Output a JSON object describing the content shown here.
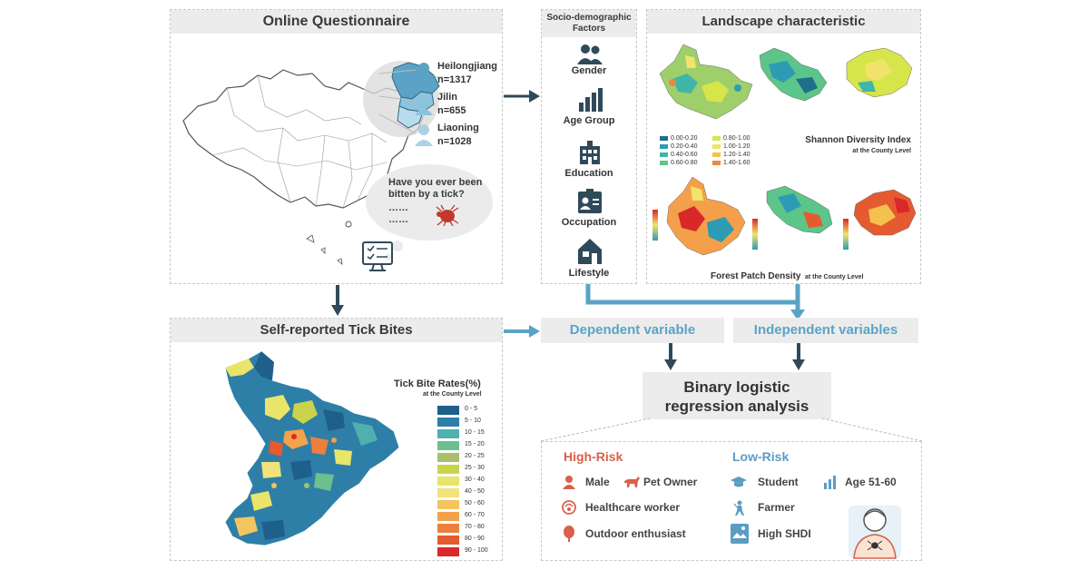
{
  "questionnaire": {
    "title": "Online Questionnaire",
    "provinces": [
      {
        "name": "Heilongjiang",
        "n": "n=1317"
      },
      {
        "name": "Jilin",
        "n": "n=655"
      },
      {
        "name": "Liaoning",
        "n": "n=1028"
      }
    ],
    "question_line1": "Have you ever been",
    "question_line2": "bitten by a tick?",
    "dots1": "……",
    "dots2": "……"
  },
  "socio": {
    "title_line1": "Socio-demographic",
    "title_line2": "Factors",
    "factors": [
      "Gender",
      "Age Group",
      "Education",
      "Occupation",
      "Lifestyle"
    ]
  },
  "landscape": {
    "title": "Landscape characteristic",
    "shdi_title": "Shannon Diversity Index",
    "shdi_sub": "at the County Level",
    "shdi_legend_left": [
      "0.00-0.20",
      "0.20-0.40",
      "0.40-0.60",
      "0.60-0.80"
    ],
    "shdi_legend_right": [
      "0.80-1.00",
      "1.00-1.20",
      "1.20-1.40",
      "1.40-1.60"
    ],
    "colors_left": [
      "#1f6f8b",
      "#2e9bb5",
      "#3fb6a8",
      "#5cc58a"
    ],
    "colors_right": [
      "#d6e64a",
      "#f2e36a",
      "#f4c14d",
      "#e8894a"
    ],
    "fpd_title": "Forest Patch Density",
    "fpd_sub": "at the County Level"
  },
  "tick": {
    "title": "Self-reported Tick Bites",
    "legend_title": "Tick Bite Rates(%)",
    "legend_sub": "at the County Level",
    "legend": [
      {
        "label": "0 - 5",
        "color": "#1f5f8b"
      },
      {
        "label": "5 - 10",
        "color": "#2e7fa8"
      },
      {
        "label": "10 - 15",
        "color": "#4fb0ae"
      },
      {
        "label": "15 - 20",
        "color": "#6cbf8e"
      },
      {
        "label": "20 - 25",
        "color": "#a9bf6a"
      },
      {
        "label": "25 - 30",
        "color": "#c9d44a"
      },
      {
        "label": "30 - 40",
        "color": "#e9e46a"
      },
      {
        "label": "40 - 50",
        "color": "#f2e27a"
      },
      {
        "label": "50 - 60",
        "color": "#f4c55e"
      },
      {
        "label": "60 - 70",
        "color": "#f2a24a"
      },
      {
        "label": "70 - 80",
        "color": "#ee7f3c"
      },
      {
        "label": "80 - 90",
        "color": "#e65a30"
      },
      {
        "label": "90 - 100",
        "color": "#d9282a"
      }
    ]
  },
  "analysis": {
    "dependent": "Dependent variable",
    "independent": "Independent variables",
    "regression_line1": "Binary logistic",
    "regression_line2": "regression analysis"
  },
  "risk": {
    "high_title": "High-Risk",
    "low_title": "Low-Risk",
    "high": [
      "Male",
      "Pet Owner",
      "Healthcare worker",
      "Outdoor enthusiast"
    ],
    "low": [
      "Student",
      "Age 51-60",
      "Farmer",
      "High SHDI"
    ]
  },
  "colors": {
    "accent_blue": "#5ba3c6",
    "dark_arrow": "#2f4a5a",
    "risk_red": "#d9604a",
    "risk_blue": "#5b9cc2"
  }
}
